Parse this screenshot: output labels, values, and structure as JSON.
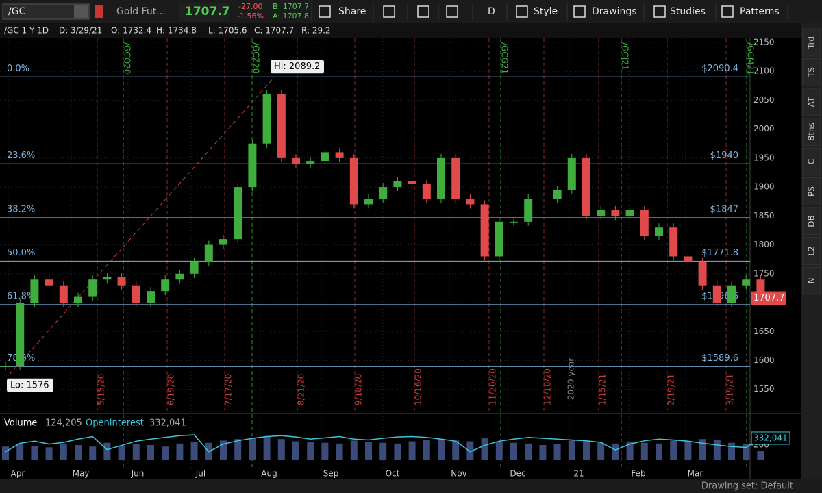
{
  "toolbar": {
    "symbol": "/GC",
    "description": "Gold Fut...",
    "last": "1707.7",
    "change": "-27.00",
    "change_pct": "-1.56%",
    "bid": "B: 1707.7",
    "ask": "A: 1707.8",
    "buttons": [
      "Share",
      "D",
      "Style",
      "Drawings",
      "Studies",
      "Patterns"
    ]
  },
  "header": {
    "symbol": "/GC 1 Y 1D",
    "date": "D: 3/29/21",
    "open": "O: 1732.4",
    "high": "H: 1734.8",
    "low": "L: 1705.6",
    "close": "C: 1707.7",
    "range": "R: 29.2"
  },
  "side_tabs": [
    "Trd",
    "TS",
    "AT",
    "Btns",
    "C",
    "PS",
    "DB",
    "L2",
    "N"
  ],
  "footer": {
    "drawing_set": "Drawing set: Default"
  },
  "chart_data": {
    "type": "candlestick",
    "ylim": [
      1513,
      2157
    ],
    "yticks": [
      1550,
      1600,
      1650,
      1700,
      1750,
      1800,
      1850,
      1900,
      1950,
      2000,
      2050,
      2100,
      2150
    ],
    "months": [
      "Apr",
      "May",
      "Jun",
      "Jul",
      "Aug",
      "Sep",
      "Oct",
      "Nov",
      "Dec",
      "21",
      "Feb",
      "Mar"
    ],
    "values": [
      1590,
      1700,
      1740,
      1730,
      1700,
      1710,
      1740,
      1745,
      1730,
      1700,
      1720,
      1740,
      1750,
      1770,
      1800,
      1810,
      1900,
      1975,
      2060,
      1950,
      1940,
      1945,
      1960,
      1950,
      1870,
      1880,
      1900,
      1910,
      1905,
      1880,
      1950,
      1880,
      1870,
      1780,
      1840,
      1840,
      1880,
      1880,
      1895,
      1950,
      1850,
      1860,
      1850,
      1860,
      1815,
      1830,
      1780,
      1770,
      1730,
      1700,
      1730,
      1740,
      1707.7
    ],
    "up_color": "#3fae3f",
    "down_color": "#e04a4a",
    "last_price": 1707.7,
    "hi": {
      "value": 2089.2,
      "label": "Hi: 2089.2"
    },
    "lo": {
      "value": 1576,
      "label": "Lo: 1576"
    },
    "fib_levels": [
      {
        "ratio": "0.0%",
        "price": {
          "value": 2090.4,
          "label": "$2090.4"
        }
      },
      {
        "ratio": "23.6%",
        "price": {
          "value": 1940,
          "label": "$1940"
        }
      },
      {
        "ratio": "38.2%",
        "price": {
          "value": 1847,
          "label": "$1847"
        }
      },
      {
        "ratio": "50.0%",
        "price": {
          "value": 1771.8,
          "label": "$1771.8"
        }
      },
      {
        "ratio": "61.8%",
        "price": {
          "value": 1696.6,
          "label": "$1696.6"
        }
      },
      {
        "ratio": "78.6%",
        "price": {
          "value": 1589.6,
          "label": "$1589.6"
        }
      }
    ],
    "fib_color": "#7fb2dc",
    "contract_markers": [
      "/GCQ20",
      "/GCZ20",
      "/GCG21",
      "/GCJ21",
      "/GCM21"
    ],
    "date_markers": [
      "5/15/20",
      "6/19/20",
      "7/17/20",
      "8/21/20",
      "9/18/20",
      "10/16/20",
      "11/20/20",
      "12/18/20",
      "1/15/21",
      "2/19/21",
      "3/19/21"
    ],
    "year_marker": "2020 year",
    "lower_panel": {
      "title": "Volume",
      "volume_label": "124,205",
      "oi_title": "OpenInterest",
      "oi_label": "332,041",
      "ylim": [
        0,
        400000
      ],
      "yticks": [
        {
          "value": 200000,
          "label": "200"
        }
      ],
      "oi_lim": [
        280000,
        345000
      ],
      "oi_color": "#3cc7d8",
      "volume": [
        180000,
        210000,
        190000,
        170000,
        220000,
        200000,
        180000,
        230000,
        190000,
        210000,
        200000,
        180000,
        220000,
        240000,
        230000,
        260000,
        280000,
        300000,
        320000,
        280000,
        250000,
        240000,
        230000,
        220000,
        260000,
        240000,
        230000,
        220000,
        250000,
        270000,
        280000,
        260000,
        250000,
        290000,
        240000,
        230000,
        220000,
        200000,
        210000,
        260000,
        250000,
        230000,
        220000,
        240000,
        230000,
        220000,
        260000,
        250000,
        280000,
        270000,
        230000,
        220000,
        124205
      ],
      "oi": [
        300000,
        320000,
        325000,
        318000,
        322000,
        330000,
        336000,
        305000,
        315000,
        325000,
        330000,
        334000,
        338000,
        340000,
        300000,
        318000,
        326000,
        332000,
        336000,
        338000,
        335000,
        330000,
        333000,
        336000,
        330000,
        328000,
        332000,
        335000,
        336000,
        334000,
        330000,
        325000,
        300000,
        315000,
        325000,
        330000,
        334000,
        332000,
        330000,
        328000,
        326000,
        322000,
        304000,
        318000,
        326000,
        330000,
        328000,
        325000,
        320000,
        316000,
        312000,
        310000,
        332041
      ]
    }
  }
}
